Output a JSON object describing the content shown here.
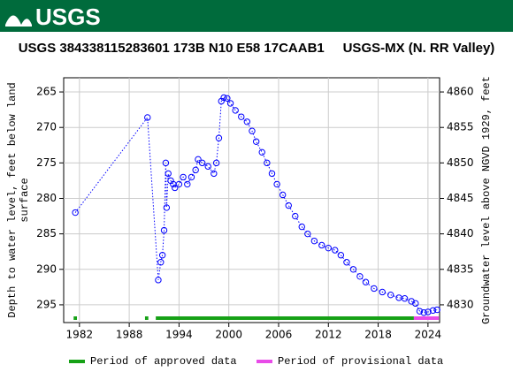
{
  "header": {
    "logo": "USGS"
  },
  "chart_data": {
    "type": "scatter",
    "title": "USGS 384338115283601 173B N10 E58 17CAAB1     USGS-MX (N. RR Valley)",
    "ylabel": [
      "Depth to water level, feet below land",
      "surface"
    ],
    "y2label": "Groundwater level above NGVD 1929, feet",
    "xlim": [
      1980.1,
      2025.4
    ],
    "xticks": [
      1982,
      1988,
      1994,
      2000,
      2006,
      2012,
      2018,
      2024
    ],
    "ylim": [
      297.5,
      263
    ],
    "yticks": [
      265,
      270,
      275,
      280,
      285,
      290,
      295
    ],
    "y2lim": [
      4827.5,
      4862
    ],
    "y2ticks": [
      4830,
      4835,
      4840,
      4845,
      4850,
      4855,
      4860
    ],
    "grid": true,
    "series": [
      {
        "name": "Depth to water level",
        "color": "#0000ff",
        "x": [
          1981.5,
          1990.2,
          1991.5,
          1991.8,
          1992.0,
          1992.2,
          1992.4,
          1992.5,
          1992.7,
          1993.0,
          1993.3,
          1993.5,
          1994.0,
          1994.5,
          1995.0,
          1995.5,
          1996.0,
          1996.3,
          1996.8,
          1997.5,
          1998.2,
          1998.5,
          1998.8,
          1999.1,
          1999.4,
          1999.8,
          2000.2,
          2000.8,
          2001.5,
          2002.2,
          2002.8,
          2003.3,
          2004.0,
          2004.6,
          2005.2,
          2005.8,
          2006.5,
          2007.2,
          2008.0,
          2008.8,
          2009.5,
          2010.3,
          2011.2,
          2012.0,
          2012.8,
          2013.5,
          2014.2,
          2015.0,
          2015.8,
          2016.5,
          2017.5,
          2018.5,
          2019.5,
          2020.5,
          2021.2,
          2022.0,
          2022.5,
          2023.0,
          2023.5,
          2024.0,
          2024.6,
          2025.1
        ],
        "values": [
          282.0,
          268.6,
          291.5,
          289.0,
          288.0,
          284.5,
          275.0,
          281.3,
          276.5,
          277.5,
          278.0,
          278.5,
          278.0,
          277.0,
          278.0,
          277.0,
          276.0,
          274.5,
          275.0,
          275.5,
          276.5,
          275.0,
          271.5,
          266.3,
          265.8,
          265.9,
          266.6,
          267.6,
          268.5,
          269.2,
          270.5,
          272.0,
          273.5,
          275.0,
          276.5,
          278.0,
          279.5,
          281.0,
          282.5,
          284.0,
          285.0,
          286.0,
          286.6,
          287.0,
          287.3,
          288.0,
          289.0,
          290.0,
          291.0,
          291.8,
          292.7,
          293.2,
          293.6,
          294.0,
          294.1,
          294.5,
          294.8,
          295.9,
          296.1,
          296.0,
          295.8,
          295.7
        ]
      }
    ],
    "periods": [
      {
        "name": "Period of approved data",
        "color": "#16a116",
        "ranges": [
          [
            1981.3,
            1981.7
          ],
          [
            1989.9,
            1990.3
          ],
          [
            1991.2,
            2022.3
          ]
        ]
      },
      {
        "name": "Period of provisional data",
        "color": "#e84be8",
        "ranges": [
          [
            2022.3,
            2025.3
          ]
        ]
      }
    ]
  }
}
